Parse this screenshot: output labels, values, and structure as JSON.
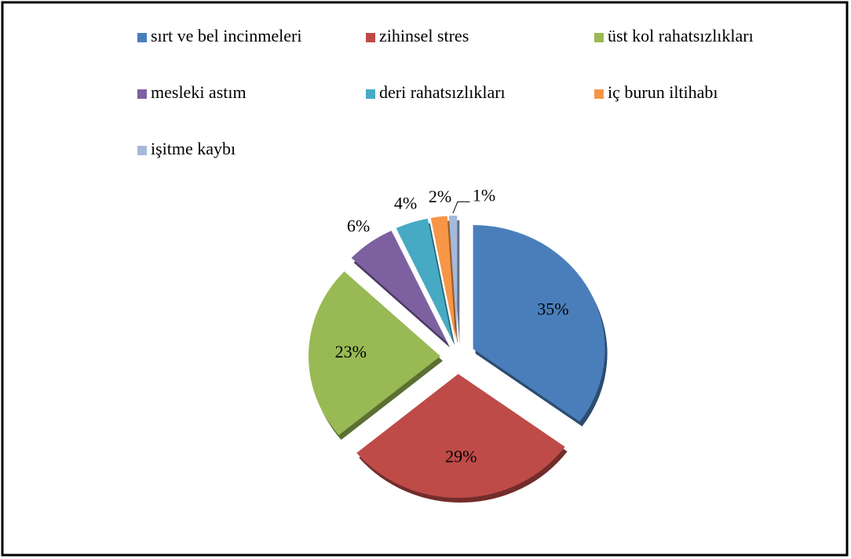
{
  "chart_data": {
    "type": "pie",
    "categories": [
      "sırt ve bel incinmeleri",
      "zihinsel stres",
      "üst kol rahatsızlıkları",
      "mesleki astım",
      "deri rahatsızlıkları",
      "iç burun iltihabı",
      "işitme kaybı"
    ],
    "values": [
      35,
      29,
      23,
      6,
      4,
      2,
      1
    ],
    "value_labels": [
      "35%",
      "29%",
      "23%",
      "6%",
      "4%",
      "2%",
      "1%"
    ],
    "colors": [
      "#4a7ebb",
      "#be4b48",
      "#98b954",
      "#7d60a0",
      "#46aac5",
      "#f79646",
      "#a5b9da"
    ],
    "legend": "top"
  }
}
